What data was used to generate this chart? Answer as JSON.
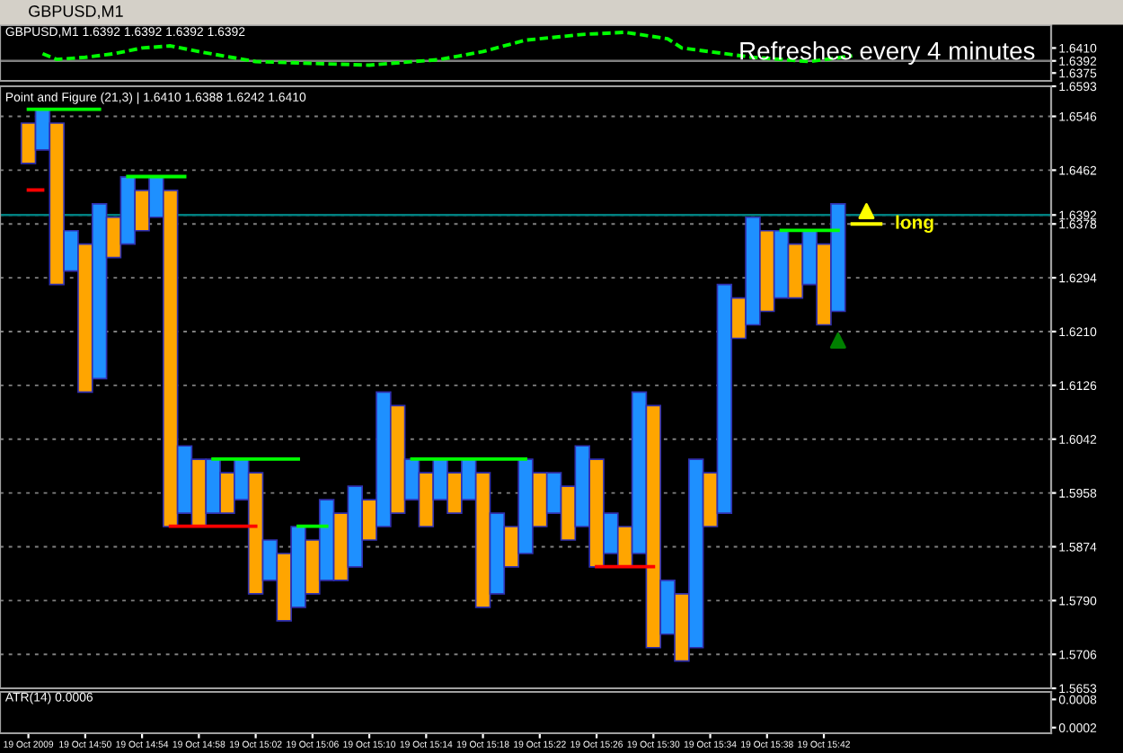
{
  "chart_data": [
    {
      "type": "line",
      "title": "GBPUSD,M1",
      "subtitle": "GBPUSD,M1 1.6392 1.6392 1.6392 1.6392",
      "annotations": [
        "Refreshes every 4 minutes"
      ],
      "series": [
        {
          "color": "#00ff00",
          "line_style": "dashed",
          "x": [
            "2009-10-19T14:47",
            "2009-10-19T14:48",
            "2009-10-19T14:50",
            "2009-10-19T14:52",
            "2009-10-19T14:54",
            "2009-10-19T14:56",
            "2009-10-19T14:58",
            "2009-10-19T15:02",
            "2009-10-19T15:10",
            "2009-10-19T15:15",
            "2009-10-19T15:18",
            "2009-10-19T15:21",
            "2009-10-19T15:25",
            "2009-10-19T15:28",
            "2009-10-19T15:31",
            "2009-10-19T15:32",
            "2009-10-19T15:37",
            "2009-10-19T15:41",
            "2009-10-19T15:44"
          ],
          "values": [
            1.6402,
            1.6394,
            1.6397,
            1.6402,
            1.641,
            1.6413,
            1.6405,
            1.6391,
            1.6386,
            1.6394,
            1.6405,
            1.6421,
            1.6429,
            1.6432,
            1.6423,
            1.641,
            1.6397,
            1.6391,
            1.6399
          ]
        }
      ],
      "xlim": [
        "2009-10-19T14:44",
        "2009-10-19T15:58"
      ],
      "ylim": [
        1.6364,
        1.6442
      ],
      "yticks": [
        {
          "value": 1.641,
          "label": "1.6410"
        },
        {
          "value": 1.6392,
          "label": "1.6392"
        },
        {
          "value": 1.6375,
          "label": "1.6375"
        }
      ],
      "ref_lines": [
        {
          "axis": "y",
          "value": 1.6392,
          "color": "#808080"
        }
      ],
      "tick_labels": "y"
    },
    {
      "type": "bar",
      "title": "Point and Figure (21,3) | 1.6410 1.6388 1.6242 1.6410",
      "grid": "y",
      "series": [
        {
          "type": "bar",
          "x": [
            "2009-10-19T14:46",
            "2009-10-19T14:47",
            "2009-10-19T14:48",
            "2009-10-19T14:49",
            "2009-10-19T14:50",
            "2009-10-19T14:51",
            "2009-10-19T14:52",
            "2009-10-19T14:53",
            "2009-10-19T14:54",
            "2009-10-19T14:55",
            "2009-10-19T14:56",
            "2009-10-19T14:57",
            "2009-10-19T14:58",
            "2009-10-19T14:59",
            "2009-10-19T15:00",
            "2009-10-19T15:01",
            "2009-10-19T15:02",
            "2009-10-19T15:03",
            "2009-10-19T15:04",
            "2009-10-19T15:05",
            "2009-10-19T15:06",
            "2009-10-19T15:07",
            "2009-10-19T15:08",
            "2009-10-19T15:09",
            "2009-10-19T15:10",
            "2009-10-19T15:11",
            "2009-10-19T15:12",
            "2009-10-19T15:13",
            "2009-10-19T15:14",
            "2009-10-19T15:15",
            "2009-10-19T15:16",
            "2009-10-19T15:17",
            "2009-10-19T15:18",
            "2009-10-19T15:19",
            "2009-10-19T15:20",
            "2009-10-19T15:21",
            "2009-10-19T15:22",
            "2009-10-19T15:23",
            "2009-10-19T15:24",
            "2009-10-19T15:25",
            "2009-10-19T15:26",
            "2009-10-19T15:27",
            "2009-10-19T15:28",
            "2009-10-19T15:29",
            "2009-10-19T15:30",
            "2009-10-19T15:31",
            "2009-10-19T15:32",
            "2009-10-19T15:33",
            "2009-10-19T15:34",
            "2009-10-19T15:35",
            "2009-10-19T15:36",
            "2009-10-19T15:37",
            "2009-10-19T15:38",
            "2009-10-19T15:39",
            "2009-10-19T15:40",
            "2009-10-19T15:41",
            "2009-10-19T15:42",
            "2009-10-19T15:43"
          ],
          "values": [
            0.0063,
            0.0063,
            0.0252,
            0.0063,
            0.0231,
            0.0273,
            0.0063,
            0.0105,
            0.0063,
            0.0063,
            0.0525,
            0.0105,
            0.0105,
            0.0084,
            0.0063,
            0.0063,
            0.0189,
            0.0063,
            0.0105,
            0.0126,
            0.0084,
            0.0126,
            0.0105,
            0.0126,
            0.0063,
            0.021,
            0.0168,
            0.0063,
            0.0084,
            0.0063,
            0.0063,
            0.0063,
            0.021,
            0.0126,
            0.0063,
            0.0147,
            0.0084,
            0.0063,
            0.0084,
            0.0126,
            0.0168,
            0.0063,
            0.0063,
            0.0252,
            0.0378,
            0.0084,
            0.0105,
            0.0294,
            0.0084,
            0.0357,
            0.0063,
            0.0168,
            0.0126,
            0.0105,
            0.0084,
            0.0084,
            0.0126,
            0.0168
          ],
          "base": [
            1.64725,
            1.64935,
            1.62835,
            1.63045,
            1.61155,
            1.61365,
            1.63255,
            1.63465,
            1.63675,
            1.63885,
            1.59055,
            1.59265,
            1.59055,
            1.59265,
            1.59265,
            1.59475,
            1.58005,
            1.58215,
            1.57585,
            1.57795,
            1.58005,
            1.58215,
            1.58215,
            1.58425,
            1.58845,
            1.59055,
            1.59265,
            1.59475,
            1.59055,
            1.59475,
            1.59265,
            1.59475,
            1.57795,
            1.58005,
            1.58425,
            1.58635,
            1.59055,
            1.59265,
            1.58845,
            1.59055,
            1.58425,
            1.58635,
            1.58425,
            1.58635,
            1.57165,
            1.57375,
            1.56955,
            1.57165,
            1.59055,
            1.59265,
            1.61995,
            1.62205,
            1.62415,
            1.62625,
            1.62625,
            1.62835,
            1.62205,
            1.62415
          ],
          "colors": [
            "#ffa500",
            "#1e90ff",
            "#ffa500",
            "#1e90ff",
            "#ffa500",
            "#1e90ff",
            "#ffa500",
            "#1e90ff",
            "#ffa500",
            "#1e90ff",
            "#ffa500",
            "#1e90ff",
            "#ffa500",
            "#1e90ff",
            "#ffa500",
            "#1e90ff",
            "#ffa500",
            "#1e90ff",
            "#ffa500",
            "#1e90ff",
            "#ffa500",
            "#1e90ff",
            "#ffa500",
            "#1e90ff",
            "#ffa500",
            "#1e90ff",
            "#ffa500",
            "#1e90ff",
            "#ffa500",
            "#1e90ff",
            "#ffa500",
            "#1e90ff",
            "#ffa500",
            "#1e90ff",
            "#ffa500",
            "#1e90ff",
            "#ffa500",
            "#1e90ff",
            "#ffa500",
            "#1e90ff",
            "#ffa500",
            "#1e90ff",
            "#ffa500",
            "#1e90ff",
            "#ffa500",
            "#1e90ff",
            "#ffa500",
            "#1e90ff",
            "#ffa500",
            "#1e90ff",
            "#ffa500",
            "#1e90ff",
            "#ffa500",
            "#1e90ff",
            "#ffa500",
            "#1e90ff",
            "#ffa500",
            "#1e90ff"
          ]
        },
        {
          "type": "line",
          "x": [
            "2009-10-19T14:46",
            "2009-10-19T14:51"
          ],
          "values": [
            1.6557,
            1.6557
          ],
          "color": "#00ff00"
        },
        {
          "type": "line",
          "x": [
            "2009-10-19T14:46",
            "2009-10-19T14:47"
          ],
          "values": [
            1.6431,
            1.6431
          ],
          "color": "#ff0000"
        },
        {
          "type": "line",
          "x": [
            "2009-10-19T14:53",
            "2009-10-19T14:57"
          ],
          "values": [
            1.6452,
            1.6452
          ],
          "color": "#00ff00"
        },
        {
          "type": "line",
          "x": [
            "2009-10-19T14:56",
            "2009-10-19T15:02"
          ],
          "values": [
            1.5906,
            1.5906
          ],
          "color": "#ff0000"
        },
        {
          "type": "line",
          "x": [
            "2009-10-19T14:59",
            "2009-10-19T15:05"
          ],
          "values": [
            1.6011,
            1.6011
          ],
          "color": "#00ff00"
        },
        {
          "type": "line",
          "x": [
            "2009-10-19T15:05",
            "2009-10-19T15:07"
          ],
          "values": [
            1.5906,
            1.5906
          ],
          "color": "#00ff00"
        },
        {
          "type": "line",
          "x": [
            "2009-10-19T15:13",
            "2009-10-19T15:21"
          ],
          "values": [
            1.6011,
            1.6011
          ],
          "color": "#00ff00"
        },
        {
          "type": "line",
          "x": [
            "2009-10-19T15:26",
            "2009-10-19T15:30"
          ],
          "values": [
            1.5843,
            1.5843
          ],
          "color": "#ff0000"
        },
        {
          "type": "line",
          "x": [
            "2009-10-19T15:39",
            "2009-10-19T15:43"
          ],
          "values": [
            1.6368,
            1.6368
          ],
          "color": "#00ff00"
        },
        {
          "type": "line",
          "x": [
            "2009-10-19T15:44",
            "2009-10-19T15:46"
          ],
          "values": [
            1.6378,
            1.6378
          ],
          "color": "#ffff00"
        },
        {
          "type": "scatter",
          "marker": "triangle",
          "x": [
            "2009-10-19T15:45",
            "2009-10-19T15:43"
          ],
          "values": [
            1.6398,
            1.6196
          ],
          "colors": [
            "#ffff00",
            "#008000"
          ]
        }
      ],
      "annotations": [
        {
          "text": "long",
          "x": "2009-10-19T15:47",
          "y": 1.6378
        }
      ],
      "xlim": [
        "2009-10-19T14:44",
        "2009-10-19T15:58"
      ],
      "ylim": [
        1.5653,
        1.6593
      ],
      "yticks": [
        {
          "value": 1.6593,
          "label": "1.6593"
        },
        {
          "value": 1.6546,
          "label": "1.6546"
        },
        {
          "value": 1.6462,
          "label": "1.6462"
        },
        {
          "value": 1.6392,
          "label": "1.6392"
        },
        {
          "value": 1.6378,
          "label": "1.6378"
        },
        {
          "value": 1.6294,
          "label": "1.6294"
        },
        {
          "value": 1.621,
          "label": "1.6210"
        },
        {
          "value": 1.6126,
          "label": "1.6126"
        },
        {
          "value": 1.6042,
          "label": "1.6042"
        },
        {
          "value": 1.5958,
          "label": "1.5958"
        },
        {
          "value": 1.5874,
          "label": "1.5874"
        },
        {
          "value": 1.579,
          "label": "1.5790"
        },
        {
          "value": 1.5706,
          "label": "1.5706"
        },
        {
          "value": 1.5653,
          "label": "1.5653"
        }
      ],
      "ref_lines": [
        {
          "axis": "y",
          "value": 1.6392,
          "color": "#008080"
        }
      ],
      "tick_labels": "y"
    },
    {
      "type": "line",
      "title": "ATR(14) 0.0006",
      "xlim": [
        "2009-10-19T14:44",
        "2009-10-19T15:58"
      ],
      "ylim": [
        8e-05,
        0.00096
      ],
      "yticks": [
        0.0008,
        0.0002
      ],
      "xticks": [
        {
          "value": "2009-10-19T14:46",
          "label": "19 Oct 2009"
        },
        {
          "value": "2009-10-19T14:50",
          "label": "19 Oct 14:50"
        },
        {
          "value": "2009-10-19T14:54",
          "label": "19 Oct 14:54"
        },
        {
          "value": "2009-10-19T14:58",
          "label": "19 Oct 14:58"
        },
        {
          "value": "2009-10-19T15:02",
          "label": "19 Oct 15:02"
        },
        {
          "value": "2009-10-19T15:06",
          "label": "19 Oct 15:06"
        },
        {
          "value": "2009-10-19T15:10",
          "label": "19 Oct 15:10"
        },
        {
          "value": "2009-10-19T15:14",
          "label": "19 Oct 15:14"
        },
        {
          "value": "2009-10-19T15:18",
          "label": "19 Oct 15:18"
        },
        {
          "value": "2009-10-19T15:22",
          "label": "19 Oct 15:22"
        },
        {
          "value": "2009-10-19T15:26",
          "label": "19 Oct 15:26"
        },
        {
          "value": "2009-10-19T15:30",
          "label": "19 Oct 15:30"
        },
        {
          "value": "2009-10-19T15:34",
          "label": "19 Oct 15:34"
        },
        {
          "value": "2009-10-19T15:38",
          "label": "19 Oct 15:38"
        },
        {
          "value": "2009-10-19T15:42",
          "label": "19 Oct 15:42"
        }
      ]
    }
  ]
}
